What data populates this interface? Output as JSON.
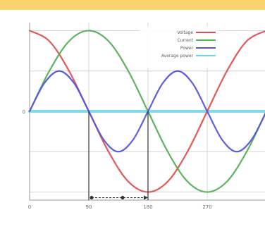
{
  "chart_data": {
    "type": "line",
    "title": "",
    "xlabel": "",
    "ylabel": "",
    "x_ticks": [
      "0",
      "90",
      "180",
      "270"
    ],
    "y_ticks": [
      "0"
    ],
    "xlim": [
      0,
      360
    ],
    "ylim": [
      -1.1,
      1.1
    ],
    "grid": true,
    "legend_position": "top-right",
    "series": [
      {
        "name": "Voltage",
        "color": "#e05050",
        "x": [
          0,
          30,
          60,
          90,
          120,
          150,
          180,
          210,
          240,
          270,
          300,
          330,
          360
        ],
        "values": [
          1.0,
          0.87,
          0.5,
          0.0,
          -0.5,
          -0.87,
          -1.0,
          -0.87,
          -0.5,
          0.0,
          0.5,
          0.87,
          1.0
        ]
      },
      {
        "name": "Current",
        "color": "#55b055",
        "x": [
          0,
          30,
          60,
          90,
          120,
          150,
          180,
          210,
          240,
          270,
          300,
          330,
          360
        ],
        "values": [
          0.0,
          0.5,
          0.87,
          1.0,
          0.87,
          0.5,
          0.0,
          -0.5,
          -0.87,
          -1.0,
          -0.87,
          -0.5,
          0.0
        ]
      },
      {
        "name": "Power",
        "color": "#5555dd",
        "x": [
          0,
          22.5,
          45,
          67.5,
          90,
          112.5,
          135,
          157.5,
          180,
          202.5,
          225,
          247.5,
          270,
          292.5,
          315,
          337.5,
          360
        ],
        "values": [
          0.0,
          0.35,
          0.5,
          0.35,
          0.0,
          -0.35,
          -0.5,
          -0.35,
          0.0,
          0.35,
          0.5,
          0.35,
          0.0,
          -0.35,
          -0.5,
          -0.35,
          0.0
        ]
      },
      {
        "name": "Average power",
        "color": "#66d8e8",
        "x": [
          0,
          360
        ],
        "values": [
          0.0,
          0.0
        ]
      }
    ],
    "annotations": [
      {
        "type": "vertical-line",
        "x": 90
      },
      {
        "type": "vertical-line",
        "x": 180
      },
      {
        "type": "arrow",
        "x_from": 90,
        "x_to": 180,
        "y": -1.0
      }
    ]
  }
}
